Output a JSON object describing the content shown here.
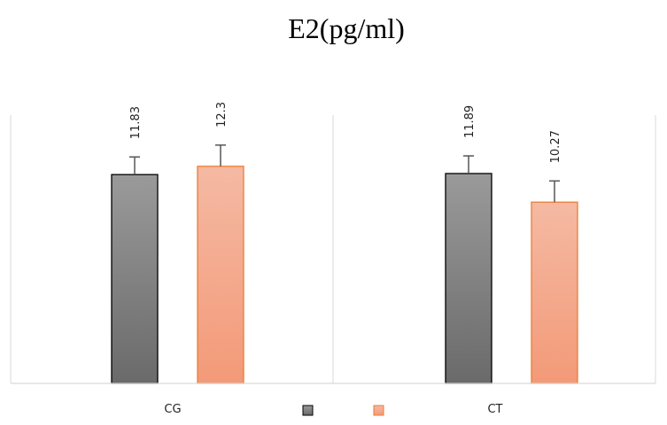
{
  "chart_data": {
    "type": "bar",
    "title": "E2(pg/ml)",
    "xlabel": "",
    "ylabel": "",
    "categories": [
      "CG",
      "CT"
    ],
    "series": [
      {
        "color": "#808080",
        "values": [
          11.83,
          11.89
        ],
        "errors": [
          1.0,
          1.0
        ]
      },
      {
        "color": "#f5a98a",
        "values": [
          12.3,
          10.27
        ],
        "errors": [
          1.2,
          1.2
        ]
      }
    ],
    "ylim": [
      0,
      15.2
    ],
    "grid": false,
    "legend": "bottom-center"
  }
}
